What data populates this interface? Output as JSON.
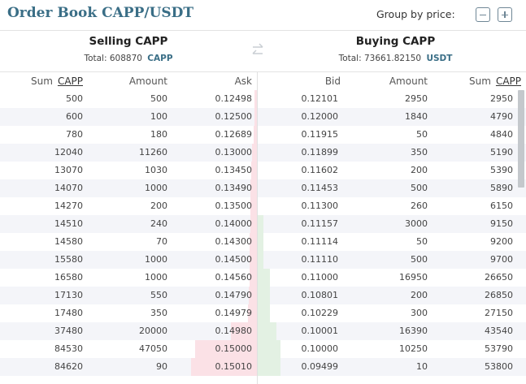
{
  "header": {
    "title": "Order Book CAPP/USDT",
    "group_by_label": "Group by price:"
  },
  "sell": {
    "title": "Selling CAPP",
    "total_label": "Total:",
    "total_value": "608870",
    "total_currency": "CAPP",
    "columns": {
      "sum": "Sum",
      "sum_unit": "CAPP",
      "amount": "Amount",
      "price": "Ask"
    }
  },
  "buy": {
    "title": "Buying CAPP",
    "total_label": "Total:",
    "total_value": "73661.82150",
    "total_currency": "USDT",
    "columns": {
      "price": "Bid",
      "amount": "Amount",
      "sum": "Sum",
      "sum_unit": "CAPP"
    }
  },
  "sell_rows": [
    {
      "sum": "500",
      "amount": "500",
      "price": "0.12498",
      "depth": 0.01
    },
    {
      "sum": "600",
      "amount": "100",
      "price": "0.12500",
      "depth": 0.01
    },
    {
      "sum": "780",
      "amount": "180",
      "price": "0.12689",
      "depth": 0.012
    },
    {
      "sum": "12040",
      "amount": "11260",
      "price": "0.13000",
      "depth": 0.02
    },
    {
      "sum": "13070",
      "amount": "1030",
      "price": "0.13450",
      "depth": 0.022
    },
    {
      "sum": "14070",
      "amount": "1000",
      "price": "0.13490",
      "depth": 0.024
    },
    {
      "sum": "14270",
      "amount": "200",
      "price": "0.13500",
      "depth": 0.025
    },
    {
      "sum": "14510",
      "amount": "240",
      "price": "0.14000",
      "depth": 0.026
    },
    {
      "sum": "14580",
      "amount": "70",
      "price": "0.14300",
      "depth": 0.027
    },
    {
      "sum": "15580",
      "amount": "1000",
      "price": "0.14500",
      "depth": 0.028
    },
    {
      "sum": "16580",
      "amount": "1000",
      "price": "0.14560",
      "depth": 0.03
    },
    {
      "sum": "17130",
      "amount": "550",
      "price": "0.14790",
      "depth": 0.032
    },
    {
      "sum": "17480",
      "amount": "350",
      "price": "0.14979",
      "depth": 0.034
    },
    {
      "sum": "37480",
      "amount": "20000",
      "price": "0.14980",
      "depth": 0.1
    },
    {
      "sum": "84530",
      "amount": "47050",
      "price": "0.15000",
      "depth": 0.24
    },
    {
      "sum": "84620",
      "amount": "90",
      "price": "0.15010",
      "depth": 0.255
    }
  ],
  "buy_rows": [
    {
      "price": "0.12101",
      "amount": "2950",
      "sum": "2950",
      "depth": 0.0
    },
    {
      "price": "0.12000",
      "amount": "1840",
      "sum": "4790",
      "depth": 0.0
    },
    {
      "price": "0.11915",
      "amount": "50",
      "sum": "4840",
      "depth": 0.0
    },
    {
      "price": "0.11899",
      "amount": "350",
      "sum": "5190",
      "depth": 0.0
    },
    {
      "price": "0.11602",
      "amount": "200",
      "sum": "5390",
      "depth": 0.0
    },
    {
      "price": "0.11453",
      "amount": "500",
      "sum": "5890",
      "depth": 0.0
    },
    {
      "price": "0.11300",
      "amount": "260",
      "sum": "6150",
      "depth": 0.0
    },
    {
      "price": "0.11157",
      "amount": "3000",
      "sum": "9150",
      "depth": 0.02
    },
    {
      "price": "0.11114",
      "amount": "50",
      "sum": "9200",
      "depth": 0.02
    },
    {
      "price": "0.11110",
      "amount": "500",
      "sum": "9700",
      "depth": 0.02
    },
    {
      "price": "0.11000",
      "amount": "16950",
      "sum": "26650",
      "depth": 0.045
    },
    {
      "price": "0.10801",
      "amount": "200",
      "sum": "26850",
      "depth": 0.045
    },
    {
      "price": "0.10229",
      "amount": "300",
      "sum": "27150",
      "depth": 0.045
    },
    {
      "price": "0.10001",
      "amount": "16390",
      "sum": "43540",
      "depth": 0.07
    },
    {
      "price": "0.10000",
      "amount": "10250",
      "sum": "53790",
      "depth": 0.085
    },
    {
      "price": "0.09499",
      "amount": "10",
      "sum": "53800",
      "depth": 0.085
    }
  ],
  "colors": {
    "title": "#3a6e86",
    "ask_depth": "#fbe1e6",
    "bid_depth": "#e3f1e3",
    "row_alt": "#f4f5f9"
  },
  "icons": {
    "group_minus": "minus-icon",
    "group_plus": "plus-icon",
    "swap": "swap-arrows-icon"
  }
}
